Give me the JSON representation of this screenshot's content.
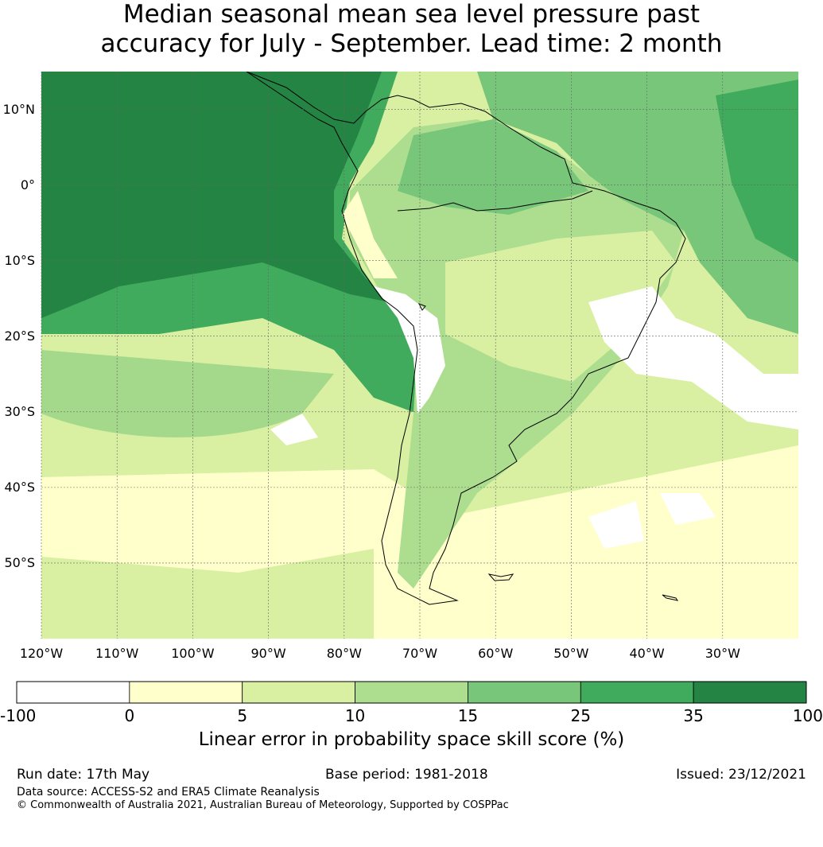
{
  "title": {
    "line1": "Median seasonal mean sea level pressure past",
    "line2": "accuracy for July - September. Lead time: 2 month"
  },
  "map": {
    "lat_labels": [
      "10°N",
      "0°",
      "10°S",
      "20°S",
      "30°S",
      "40°S",
      "50°S"
    ],
    "lon_labels": [
      "120°W",
      "110°W",
      "100°W",
      "90°W",
      "80°W",
      "70°W",
      "60°W",
      "50°W",
      "40°W",
      "30°W"
    ],
    "lon_range": [
      -120,
      -20
    ],
    "lat_range": [
      -60,
      15
    ]
  },
  "colorbar": {
    "ticks": [
      "-100",
      "0",
      "5",
      "10",
      "15",
      "25",
      "35",
      "100"
    ],
    "colors": [
      "#ffffff",
      "#ffffcc",
      "#d9f0a3",
      "#addd8e",
      "#78c679",
      "#41ab5d",
      "#238443"
    ],
    "label": "Linear error in probability space skill score (%)"
  },
  "footer": {
    "run_date": "Run date: 17th May",
    "base_period": "Base period: 1981-2018",
    "issued": "Issued: 23/12/2021",
    "data_source": "Data source: ACCESS-S2 and ERA5 Climate Reanalysis",
    "copyright": "© Commonwealth of Australia 2021, Australian Bureau of Meteorology, Supported by COSPPac"
  }
}
